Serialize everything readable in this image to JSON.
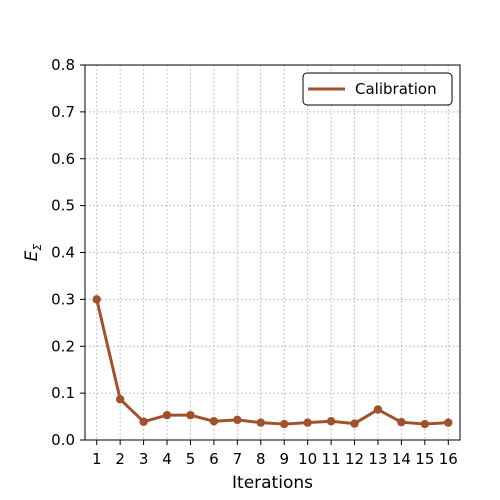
{
  "chart_data": {
    "type": "line",
    "title": "",
    "xlabel": "Iterations",
    "ylabel": "E",
    "ylabel_subscript": "Σ",
    "x": [
      1,
      2,
      3,
      4,
      5,
      6,
      7,
      8,
      9,
      10,
      11,
      12,
      13,
      14,
      15,
      16
    ],
    "xticks": [
      "1",
      "2",
      "3",
      "4",
      "5",
      "6",
      "7",
      "8",
      "9",
      "10",
      "11",
      "12",
      "13",
      "14",
      "15",
      "16"
    ],
    "xlim": [
      0.5,
      16.5
    ],
    "ylim": [
      0.0,
      0.8
    ],
    "yticks": [
      "0.0",
      "0.1",
      "0.2",
      "0.3",
      "0.4",
      "0.5",
      "0.6",
      "0.7",
      "0.8"
    ],
    "grid": true,
    "legend_position": "top-right",
    "series": [
      {
        "name": "Calibration",
        "color": "#a0522d",
        "values": [
          0.3,
          0.087,
          0.039,
          0.053,
          0.053,
          0.04,
          0.043,
          0.037,
          0.034,
          0.037,
          0.04,
          0.035,
          0.065,
          0.038,
          0.034,
          0.037
        ]
      }
    ]
  }
}
